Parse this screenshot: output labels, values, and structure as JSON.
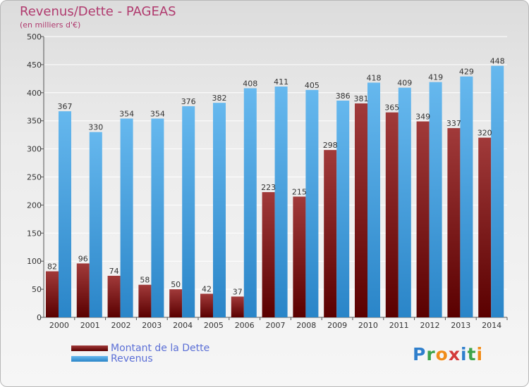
{
  "header": {
    "title": "Revenus/Dette - PAGEAS",
    "subtitle": "(en milliers d'€)"
  },
  "logo": {
    "text": "Proxiti",
    "letters": [
      "P",
      "r",
      "o",
      "x",
      "i",
      "t",
      "i"
    ],
    "letter_colors": [
      "#2f7fcc",
      "#3ea34a",
      "#f08c1a",
      "#d33a3a",
      "#2f7fcc",
      "#3ea34a",
      "#f08c1a"
    ]
  },
  "colors": {
    "dette_top": "#a13a3a",
    "dette_bottom": "#5a0000",
    "revenus_top": "#66b8ee",
    "revenus_bottom": "#2a85c8",
    "title": "#b03a6e",
    "legend_text": "#5b6fd6",
    "grid": "#ffffff"
  },
  "chart_data": {
    "type": "bar",
    "title": "Revenus/Dette - PAGEAS",
    "subtitle": "(en milliers d'€)",
    "categories": [
      "2000",
      "2001",
      "2002",
      "2003",
      "2004",
      "2005",
      "2006",
      "2007",
      "2008",
      "2009",
      "2010",
      "2011",
      "2012",
      "2013",
      "2014"
    ],
    "series": [
      {
        "name": "Montant de la Dette",
        "values": [
          82,
          96,
          74,
          58,
          50,
          42,
          37,
          223,
          215,
          298,
          381,
          365,
          349,
          337,
          320
        ],
        "labels": [
          "82",
          "96",
          "74",
          "58",
          "50",
          "42",
          "37",
          "223",
          "215",
          "298",
          "381",
          "365",
          "349",
          "337",
          "320"
        ]
      },
      {
        "name": "Revenus",
        "values": [
          367,
          330,
          354,
          354,
          376,
          382,
          408,
          411,
          405,
          386,
          418,
          409,
          419,
          429,
          448
        ],
        "labels": [
          "367",
          "330",
          "354",
          "354",
          "376",
          "382",
          "408",
          "411",
          "405",
          "386",
          "418",
          "409",
          "419",
          "429",
          "448"
        ]
      }
    ],
    "ylim": [
      0,
      500
    ],
    "yticks": [
      0,
      50,
      100,
      150,
      200,
      250,
      300,
      350,
      400,
      450,
      500
    ],
    "ytick_labels": [
      "0",
      "50",
      "100",
      "150",
      "200",
      "250",
      "300",
      "350",
      "400",
      "450",
      "500"
    ],
    "grid": true,
    "legend": "bottom-left"
  }
}
